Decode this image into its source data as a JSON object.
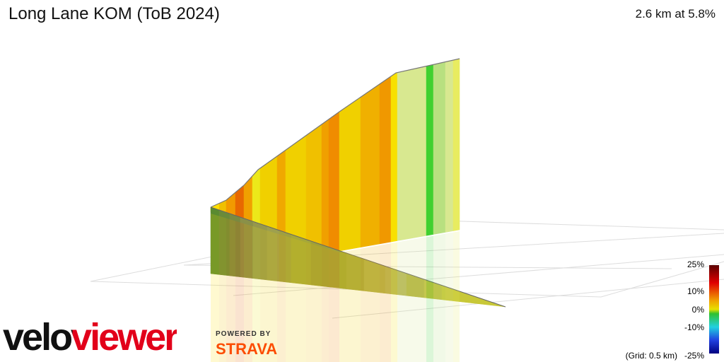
{
  "header": {
    "title": "Long Lane KOM (ToB 2024)",
    "stats": "2.6 km at 5.8%"
  },
  "legend": {
    "labels": [
      "25%",
      "10%",
      "0%",
      "-10%",
      "-25%"
    ],
    "grid_note": "(Grid: 0.5 km)"
  },
  "branding": {
    "logo": "veloviewer",
    "powered_by": "POWERED BY",
    "strava": "STRAVA"
  }
}
